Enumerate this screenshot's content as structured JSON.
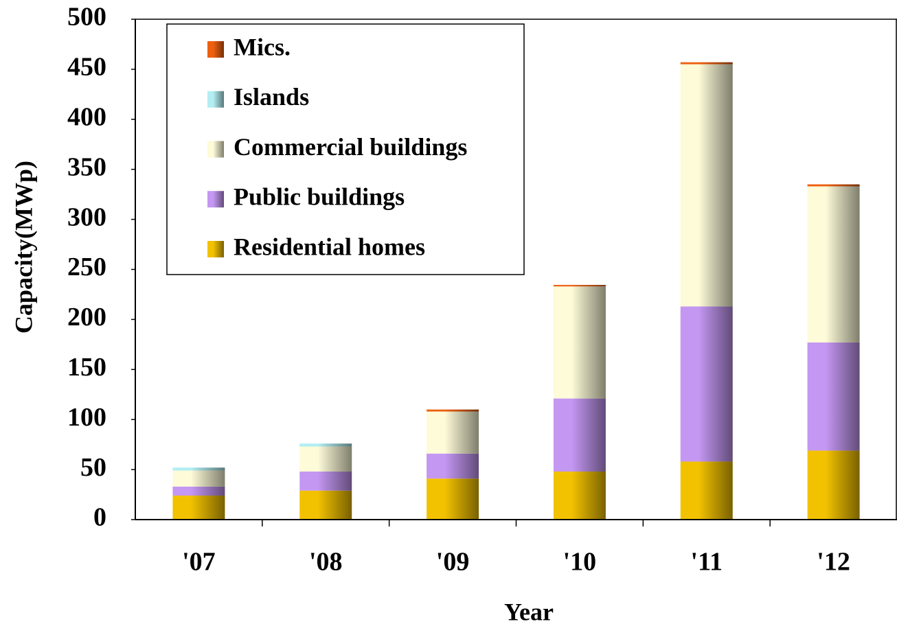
{
  "chart_data": {
    "type": "stacked_bar",
    "x_label": "Year",
    "y_label": "Capacity(MWp)",
    "categories": [
      "'07",
      "'08",
      "'09",
      "'10",
      "'11",
      "'12"
    ],
    "series": [
      {
        "name": "Residential homes",
        "color": "#f2c200",
        "values": [
          24,
          29,
          41,
          48,
          58,
          69
        ]
      },
      {
        "name": "Public buildings",
        "color": "#c497f2",
        "values": [
          9,
          19,
          25,
          73,
          155,
          108
        ]
      },
      {
        "name": "Commercial buildings",
        "color": "#fdfbd8",
        "values": [
          16,
          25,
          42,
          112,
          242,
          156
        ]
      },
      {
        "name": "Islands",
        "color": "#b3eef2",
        "values": [
          3,
          3,
          0,
          0,
          0,
          0
        ]
      },
      {
        "name": "Mics.",
        "color": "#ee6010",
        "values": [
          0,
          0,
          2,
          1.5,
          2,
          2
        ]
      }
    ],
    "ylim": [
      0,
      500
    ],
    "yticks": [
      0,
      50,
      100,
      150,
      200,
      250,
      300,
      350,
      400,
      450,
      500
    ],
    "legend": "upper left"
  }
}
